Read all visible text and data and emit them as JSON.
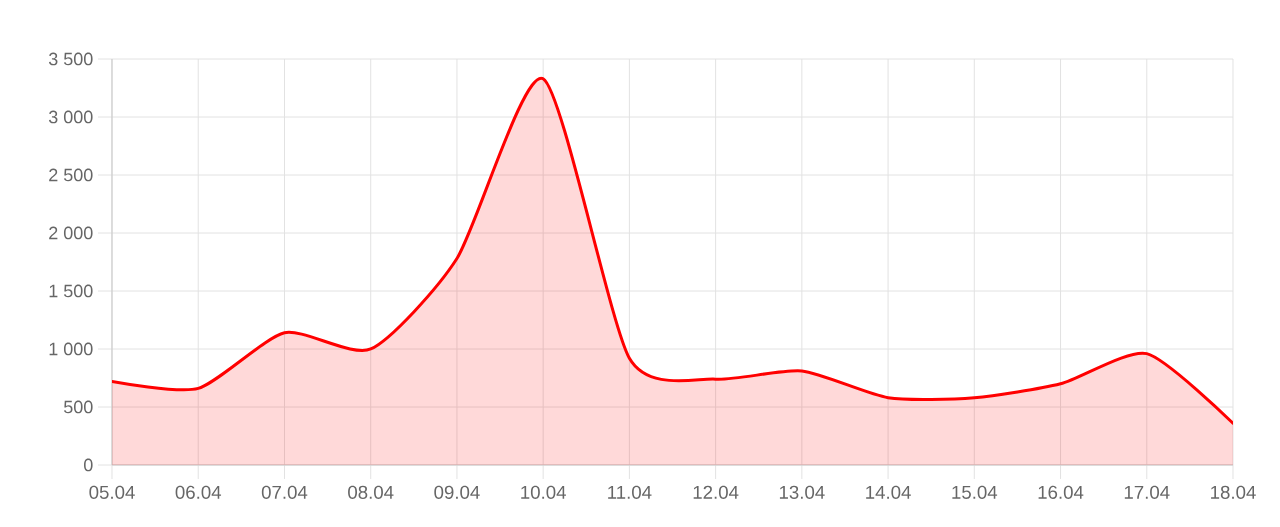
{
  "chart_data": {
    "type": "area",
    "categories": [
      "05.04",
      "06.04",
      "07.04",
      "08.04",
      "09.04",
      "10.04",
      "11.04",
      "12.04",
      "13.04",
      "14.04",
      "15.04",
      "16.04",
      "17.04",
      "18.04"
    ],
    "series": [
      {
        "color": "#ff0000",
        "values": [
          720,
          660,
          1140,
          1000,
          1780,
          3330,
          920,
          740,
          810,
          580,
          580,
          700,
          960,
          360
        ]
      }
    ],
    "ylim": [
      0,
      3500
    ],
    "yticks": [
      0,
      500,
      {
        "value": 1000,
        "label": "1 000"
      },
      {
        "value": 1500,
        "label": "1 500"
      },
      {
        "value": 2000,
        "label": "2 000"
      },
      {
        "value": 2500,
        "label": "2 500"
      },
      {
        "value": 3000,
        "label": "3 000"
      },
      {
        "value": 3500,
        "label": "3 500"
      }
    ],
    "grid": true
  }
}
